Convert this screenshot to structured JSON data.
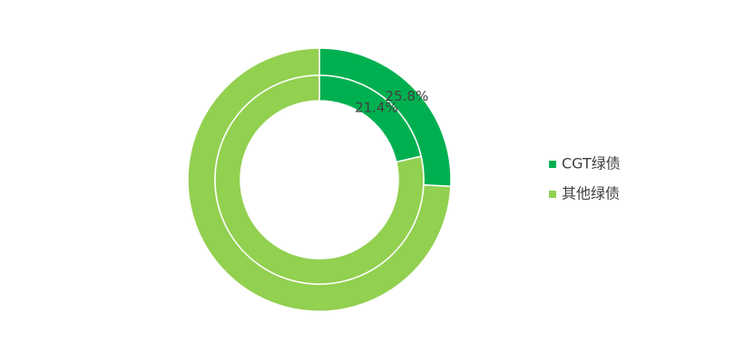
{
  "chart_data": {
    "type": "donut",
    "categories": [
      "CGT绿债",
      "其他绿债"
    ],
    "colors": [
      "#00b050",
      "#92d050"
    ],
    "rings": [
      {
        "values": [
          25.8,
          74.2
        ],
        "value_labels": [
          "25.8%",
          null
        ]
      },
      {
        "values": [
          21.4,
          78.6
        ],
        "value_labels": [
          "21.4%",
          null
        ]
      }
    ],
    "legend": "right"
  }
}
